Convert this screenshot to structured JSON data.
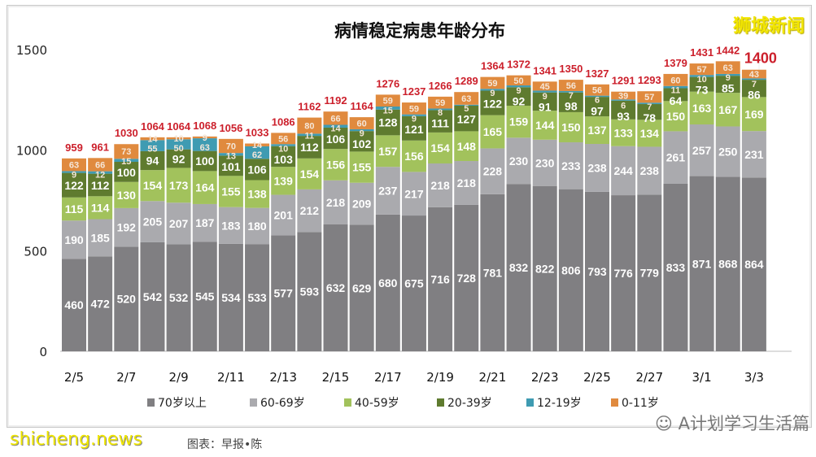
{
  "chart_data": {
    "type": "bar",
    "stacked": true,
    "title": "病情稳定病患年龄分布",
    "categories": [
      "2/5",
      "2/6",
      "2/7",
      "2/8",
      "2/9",
      "2/10",
      "2/11",
      "2/12",
      "2/13",
      "2/14",
      "2/15",
      "2/16",
      "2/17",
      "2/18",
      "2/19",
      "2/20",
      "2/21",
      "2/22",
      "2/23",
      "2/24",
      "2/25",
      "2/26",
      "2/27",
      "2/28",
      "3/1",
      "3/2",
      "3/3"
    ],
    "xtick_labels": [
      "2/5",
      "2/7",
      "2/9",
      "2/11",
      "2/13",
      "2/15",
      "2/17",
      "2/19",
      "2/21",
      "2/23",
      "2/25",
      "2/27",
      "3/1",
      "3/3"
    ],
    "yticks": [
      0,
      500,
      1000,
      1500
    ],
    "ylim": [
      0,
      1500
    ],
    "grid": false,
    "legend_position": "bottom",
    "series": [
      {
        "name": "70岁以上",
        "color": "#807f82",
        "values": [
          460,
          472,
          520,
          542,
          532,
          545,
          534,
          533,
          577,
          593,
          632,
          629,
          680,
          675,
          716,
          728,
          781,
          832,
          822,
          806,
          793,
          776,
          779,
          833,
          871,
          868,
          864
        ]
      },
      {
        "name": "60-69岁",
        "color": "#aaaaae",
        "values": [
          190,
          185,
          192,
          205,
          207,
          187,
          183,
          180,
          201,
          212,
          218,
          209,
          237,
          217,
          218,
          218,
          228,
          230,
          230,
          233,
          238,
          244,
          238,
          261,
          257,
          250,
          231
        ]
      },
      {
        "name": "40-59岁",
        "color": "#a2c25c",
        "values": [
          115,
          114,
          130,
          154,
          173,
          164,
          155,
          138,
          139,
          154,
          156,
          155,
          157,
          156,
          154,
          148,
          165,
          159,
          144,
          150,
          137,
          133,
          134,
          150,
          163,
          167,
          169
        ]
      },
      {
        "name": "20-39岁",
        "color": "#5f7b2f",
        "values": [
          122,
          112,
          100,
          94,
          92,
          100,
          101,
          106,
          103,
          112,
          106,
          102,
          128,
          121,
          111,
          127,
          122,
          92,
          91,
          98,
          97,
          93,
          78,
          64,
          73,
          85,
          86
        ]
      },
      {
        "name": "12-19岁",
        "color": "#3f9bb2",
        "values": [
          9,
          12,
          15,
          55,
          50,
          63,
          13,
          62,
          10,
          11,
          14,
          9,
          15,
          9,
          8,
          5,
          9,
          9,
          9,
          7,
          6,
          6,
          7,
          11,
          10,
          9,
          7
        ]
      },
      {
        "name": "0-11岁",
        "color": "#e08a3e",
        "values": [
          63,
          66,
          73,
          14,
          10,
          9,
          70,
          14,
          56,
          80,
          66,
          60,
          59,
          59,
          59,
          63,
          59,
          50,
          45,
          56,
          56,
          39,
          57,
          60,
          57,
          63,
          43
        ]
      }
    ],
    "totals": [
      959,
      961,
      1030,
      1064,
      1064,
      1068,
      1056,
      1033,
      1086,
      1162,
      1192,
      1164,
      1276,
      1237,
      1266,
      1289,
      1364,
      1372,
      1341,
      1350,
      1327,
      1291,
      1293,
      1379,
      1431,
      1442,
      1400
    ],
    "total_color": "#cc1f2b"
  },
  "watermarks": {
    "top_right": "狮城新闻",
    "bottom_left": "shicheng.news",
    "caption": "图表：早报•陈",
    "bottom_right": "A计划学习生活篇"
  }
}
